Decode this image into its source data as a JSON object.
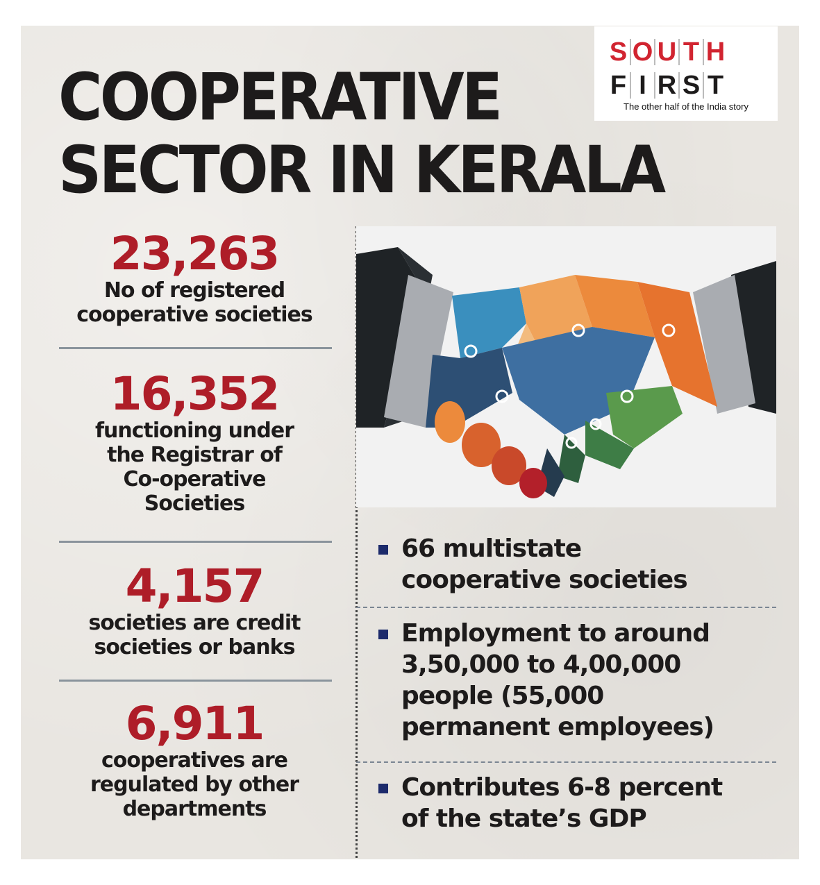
{
  "title": {
    "line1": "COOPERATIVE",
    "line2": "SECTOR IN KERALA"
  },
  "logo": {
    "top": [
      "S",
      "O",
      "U",
      "T",
      "H"
    ],
    "bottom": [
      "F",
      "I",
      "R",
      "S",
      "T"
    ],
    "tagline": "The other half of the India story"
  },
  "stats": [
    {
      "number": "23,263",
      "lines": [
        "No of registered",
        "cooperative societies"
      ]
    },
    {
      "number": "16,352",
      "lines": [
        "functioning under",
        "the Registrar of",
        "Co-operative",
        "Societies"
      ]
    },
    {
      "number": "4,157",
      "lines": [
        "societies are credit",
        "societies or banks"
      ]
    },
    {
      "number": "6,911",
      "lines": [
        "cooperatives are",
        "regulated by other",
        "departments"
      ]
    }
  ],
  "facts": {
    "f1": {
      "strong": "66",
      "rest": " multistate",
      "line2": "cooperative societies"
    },
    "f2": {
      "line1": "Employment to around",
      "line2": "3,50,000 to 4,00,000",
      "line3a": "people (",
      "line3b": "55,000",
      "line4": "permanent employees)"
    },
    "f3": {
      "line1": "Contributes 6-8 percent",
      "line2": "of the state’s GDP"
    }
  },
  "colors": {
    "accent": "#ae1d28",
    "bullet": "#1c2a6b",
    "logo_red": "#d12430"
  },
  "image": {
    "icon": "puzzle-handshake-icon"
  }
}
